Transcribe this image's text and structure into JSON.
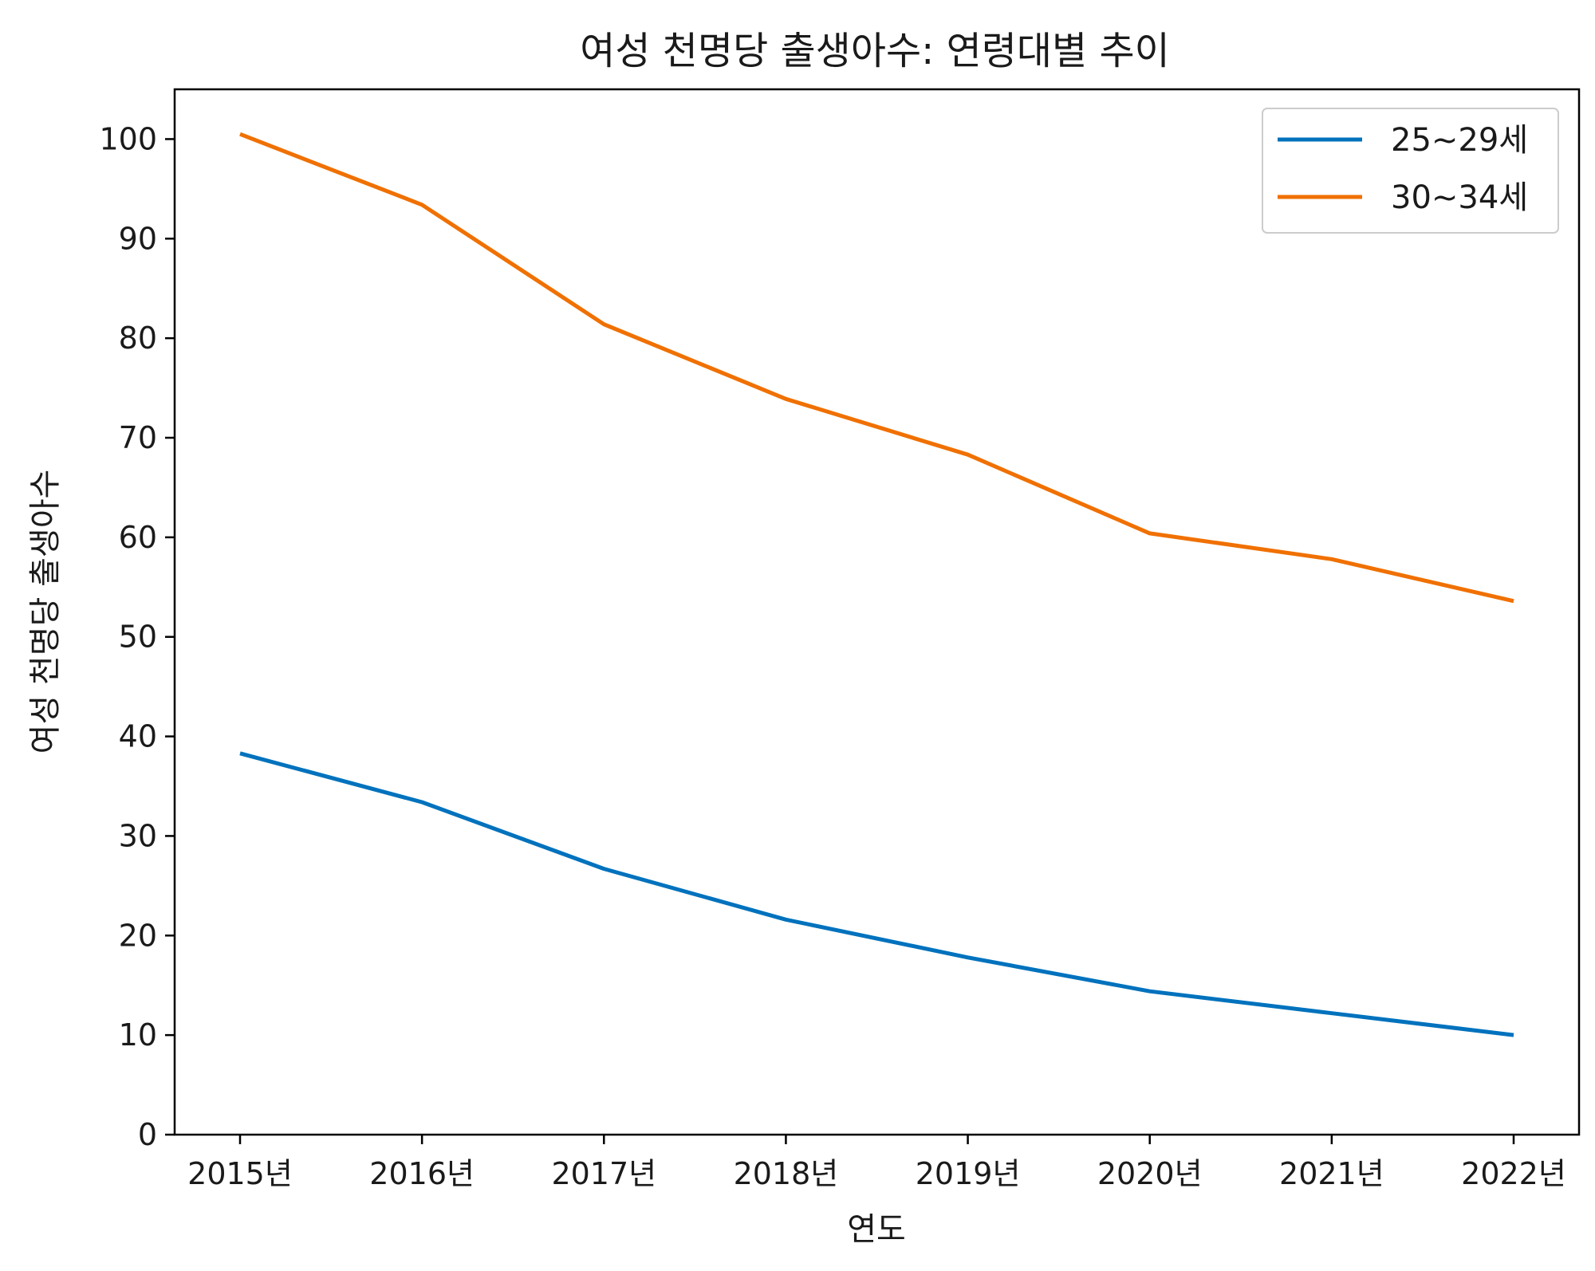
{
  "chart_data": {
    "type": "line",
    "title": "여성 천명당 출생아수: 연령대별 추이",
    "xlabel": "연도",
    "ylabel": "여성 천명당 출생아수",
    "categories": [
      "2015년",
      "2016년",
      "2017년",
      "2018년",
      "2019년",
      "2020년",
      "2021년",
      "2022년"
    ],
    "ylim": [
      0,
      105
    ],
    "yticks": [
      0,
      10,
      20,
      30,
      40,
      50,
      60,
      70,
      80,
      90,
      100
    ],
    "grid": false,
    "legend_position": "top-right",
    "series": [
      {
        "name": "25~29세",
        "color": "#0072bd",
        "values": [
          38.3,
          33.4,
          26.7,
          21.6,
          17.8,
          14.4,
          12.2,
          10.0
        ]
      },
      {
        "name": "30~34세",
        "color": "#f07000",
        "values": [
          100.5,
          93.4,
          81.4,
          73.9,
          68.3,
          60.4,
          57.8,
          53.6
        ]
      }
    ]
  }
}
